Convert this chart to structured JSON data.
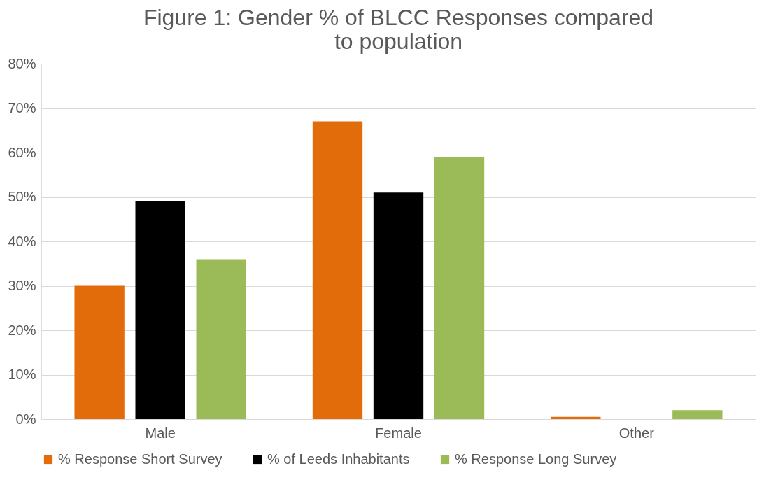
{
  "chart_data": {
    "type": "bar",
    "title": "Figure 1: Gender % of BLCC Responses compared to population",
    "categories": [
      "Male",
      "Female",
      "Other"
    ],
    "series": [
      {
        "name": "% Response Short Survey",
        "color": "#e36c0a",
        "values": [
          30,
          67,
          0.5
        ]
      },
      {
        "name": "% of Leeds Inhabitants",
        "color": "#000000",
        "values": [
          49,
          51,
          0
        ]
      },
      {
        "name": "% Response Long Survey",
        "color": "#9bbb59",
        "values": [
          36,
          59,
          2
        ]
      }
    ],
    "ylim": [
      0,
      80
    ],
    "yticks": [
      {
        "value": 0,
        "label": "0%"
      },
      {
        "value": 10,
        "label": "10%"
      },
      {
        "value": 20,
        "label": "20%"
      },
      {
        "value": 30,
        "label": "30%"
      },
      {
        "value": 40,
        "label": "40%"
      },
      {
        "value": 50,
        "label": "50%"
      },
      {
        "value": 60,
        "label": "60%"
      },
      {
        "value": 70,
        "label": "70%"
      },
      {
        "value": 80,
        "label": "80%"
      }
    ],
    "grid": "y",
    "legend": "bottom"
  }
}
